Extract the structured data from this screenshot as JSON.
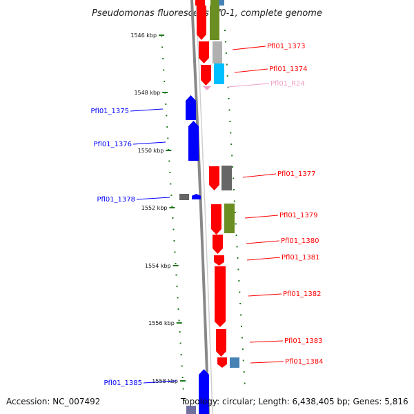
{
  "title": "Pseudomonas fluorescens Pf0-1, complete genome",
  "footer": {
    "accession": "Accession: NC_007492",
    "topology": "Topology: circular; Length: 6,438,405 bp; Genes: 5,816"
  },
  "colors": {
    "forward": "#ff0000",
    "reverse": "#0000ff",
    "olive": "#6b8e23",
    "gray": "#b0b0b0",
    "dark_gray": "#666666",
    "cyan": "#00bfff",
    "steel": "#4682b4",
    "pink": "#f0a0c8",
    "tick": "#1e7a1e",
    "backbone": "#888888"
  },
  "ticks": [
    {
      "label": "1546 kbp"
    },
    {
      "label": "1548 kbp"
    },
    {
      "label": "1550 kbp"
    },
    {
      "label": "1552 kbp"
    },
    {
      "label": "1554 kbp"
    },
    {
      "label": "1556 kbp"
    },
    {
      "label": "1558 kbp"
    }
  ],
  "genes": [
    {
      "label": "Pfl01_1373",
      "color": "#ff0000",
      "strand": "forward"
    },
    {
      "label": "Pfl01_1374",
      "color": "#ff0000",
      "strand": "forward"
    },
    {
      "label": "Pfl01_R24",
      "color": "#f0a0c8",
      "strand": "forward"
    },
    {
      "label": "Pfl01_1375",
      "color": "#0000ff",
      "strand": "reverse"
    },
    {
      "label": "Pfl01_1376",
      "color": "#0000ff",
      "strand": "reverse"
    },
    {
      "label": "Pfl01_1377",
      "color": "#ff0000",
      "strand": "forward"
    },
    {
      "label": "Pfl01_1378",
      "color": "#0000ff",
      "strand": "reverse"
    },
    {
      "label": "Pfl01_1379",
      "color": "#ff0000",
      "strand": "forward"
    },
    {
      "label": "Pfl01_1380",
      "color": "#ff0000",
      "strand": "forward"
    },
    {
      "label": "Pfl01_1381",
      "color": "#ff0000",
      "strand": "forward"
    },
    {
      "label": "Pfl01_1382",
      "color": "#ff0000",
      "strand": "forward"
    },
    {
      "label": "Pfl01_1383",
      "color": "#ff0000",
      "strand": "forward"
    },
    {
      "label": "Pfl01_1384",
      "color": "#ff0000",
      "strand": "forward"
    },
    {
      "label": "Pfl01_1385",
      "color": "#0000ff",
      "strand": "reverse"
    }
  ]
}
